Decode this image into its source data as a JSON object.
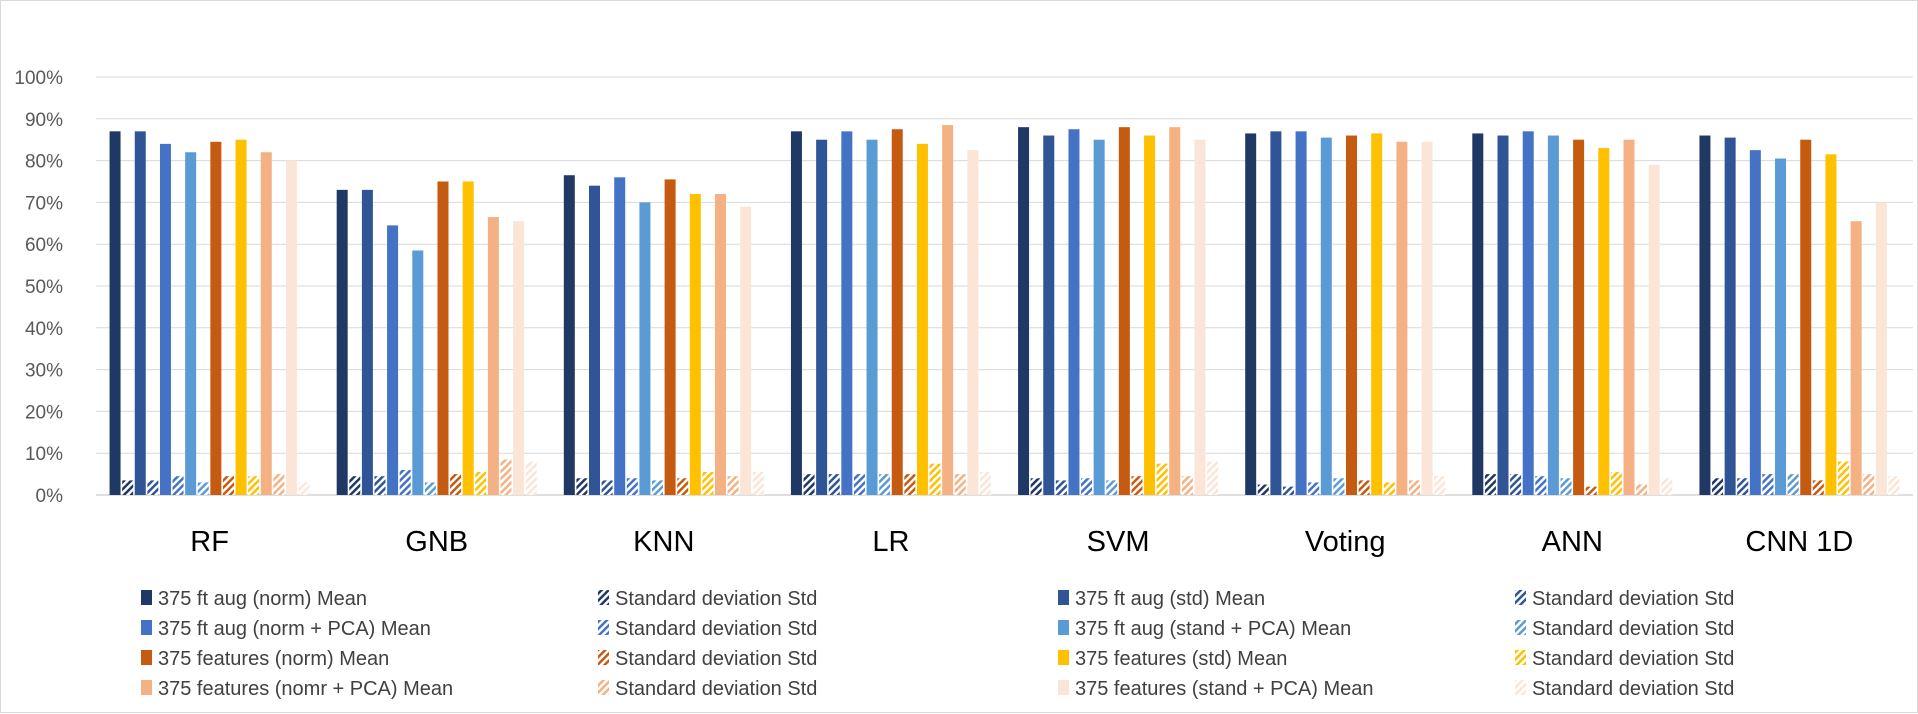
{
  "chart_data": {
    "type": "bar",
    "title": "",
    "xlabel": "",
    "ylabel": "",
    "ylim": [
      0,
      100
    ],
    "y_tick_labels": [
      "0%",
      "10%",
      "20%",
      "30%",
      "40%",
      "50%",
      "60%",
      "70%",
      "80%",
      "90%",
      "100%"
    ],
    "grid": true,
    "legend_position": "bottom",
    "categories": [
      "RF",
      "GNB",
      "KNN",
      "LR",
      "SVM",
      "Voting",
      "ANN",
      "CNN 1D"
    ],
    "series": [
      {
        "name": "375 ft aug (norm) Mean",
        "kind": "mean",
        "color": "#203864",
        "values": [
          87,
          73,
          76.5,
          87,
          88,
          86.5,
          86.5,
          86
        ]
      },
      {
        "name": "Standard deviation Std",
        "kind": "std",
        "color": "#203864",
        "values": [
          3.5,
          4.5,
          4,
          5,
          4,
          2.5,
          5,
          4
        ]
      },
      {
        "name": "375 ft aug  (std) Mean",
        "kind": "mean",
        "color": "#2F5597",
        "values": [
          87,
          73,
          74,
          85,
          86,
          87,
          86,
          85.5
        ]
      },
      {
        "name": "Standard deviation Std",
        "kind": "std",
        "color": "#2F5597",
        "values": [
          3.5,
          4.5,
          3.5,
          5,
          3.5,
          2,
          5,
          4
        ]
      },
      {
        "name": "375 ft aug  (norm + PCA) Mean",
        "kind": "mean",
        "color": "#4472C4",
        "values": [
          84,
          64.5,
          76,
          87,
          87.5,
          87,
          87,
          82.5
        ]
      },
      {
        "name": "Standard deviation Std",
        "kind": "std",
        "color": "#4472C4",
        "values": [
          4.5,
          6,
          4,
          5,
          4,
          3,
          4.5,
          5
        ]
      },
      {
        "name": "375 ft aug  (stand + PCA) Mean",
        "kind": "mean",
        "color": "#5B9BD5",
        "values": [
          82,
          58.5,
          70,
          85,
          85,
          85.5,
          86,
          80.5
        ]
      },
      {
        "name": "Standard deviation Std",
        "kind": "std",
        "color": "#5B9BD5",
        "values": [
          3,
          3,
          3.5,
          5,
          3.5,
          4,
          4,
          5
        ]
      },
      {
        "name": "375 features  (norm) Mean",
        "kind": "mean",
        "color": "#C55A11",
        "values": [
          84.5,
          75,
          75.5,
          87.5,
          88,
          86,
          85,
          85
        ]
      },
      {
        "name": "Standard deviation Std",
        "kind": "std",
        "color": "#C55A11",
        "values": [
          4.5,
          5,
          4,
          5,
          4.5,
          3.5,
          2,
          3.5
        ]
      },
      {
        "name": "375 features  (std) Mean",
        "kind": "mean",
        "color": "#FFC000",
        "values": [
          85,
          75,
          72,
          84,
          86,
          86.5,
          83,
          81.5
        ]
      },
      {
        "name": "Standard deviation Std",
        "kind": "std",
        "color": "#FFC000",
        "values": [
          4.5,
          5.5,
          5.5,
          7.5,
          7.5,
          3,
          5.5,
          8
        ]
      },
      {
        "name": "375 features (nomr + PCA) Mean",
        "kind": "mean",
        "color": "#F4B183",
        "values": [
          82,
          66.5,
          72,
          88.5,
          88,
          84.5,
          85,
          65.5
        ]
      },
      {
        "name": "Standard deviation Std",
        "kind": "std",
        "color": "#F4B183",
        "values": [
          5,
          8.5,
          4.5,
          5,
          4.5,
          3.5,
          2.5,
          5
        ]
      },
      {
        "name": "375 features (stand + PCA) Mean",
        "kind": "mean",
        "color": "#FBE5D6",
        "values": [
          80,
          65.5,
          69,
          82.5,
          85,
          84.5,
          79,
          70
        ]
      },
      {
        "name": "Standard deviation Std",
        "kind": "std",
        "color": "#FBE5D6",
        "values": [
          3,
          8,
          5.5,
          5.5,
          8,
          4.5,
          4,
          4.5
        ]
      }
    ]
  }
}
